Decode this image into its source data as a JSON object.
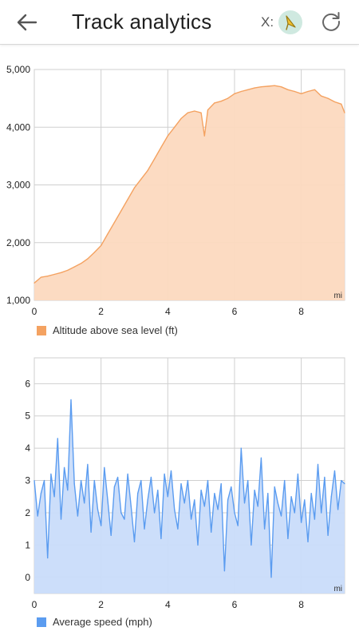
{
  "header": {
    "title": "Track analytics",
    "x_label": "X:",
    "back_icon": "arrow-left-icon",
    "refresh_icon": "refresh-icon",
    "badge_icon": "compass-badge-icon"
  },
  "chart_data": [
    {
      "type": "area",
      "x_unit": "mi",
      "xlim": [
        0,
        9.3
      ],
      "ylim": [
        1000,
        5000
      ],
      "x_ticks": [
        0,
        2,
        4,
        6,
        8
      ],
      "y_ticks": [
        1000,
        2000,
        3000,
        4000,
        5000
      ],
      "y_tick_labels": [
        "1,000",
        "2,000",
        "3,000",
        "4,000",
        "5,000"
      ],
      "color": "#f4a261",
      "fill": "#fcd9bf",
      "series": [
        {
          "name": "Altitude above sea level (ft)",
          "x": [
            0,
            0.2,
            0.4,
            0.6,
            0.8,
            1.0,
            1.2,
            1.4,
            1.6,
            1.8,
            2.0,
            2.2,
            2.4,
            2.6,
            2.8,
            3.0,
            3.2,
            3.4,
            3.6,
            3.8,
            4.0,
            4.2,
            4.4,
            4.6,
            4.8,
            5.0,
            5.1,
            5.2,
            5.4,
            5.6,
            5.8,
            6.0,
            6.2,
            6.4,
            6.6,
            6.8,
            7.0,
            7.2,
            7.4,
            7.6,
            7.8,
            8.0,
            8.2,
            8.4,
            8.6,
            8.8,
            9.0,
            9.2,
            9.3
          ],
          "y": [
            1300,
            1400,
            1420,
            1450,
            1480,
            1520,
            1580,
            1640,
            1720,
            1830,
            1950,
            2150,
            2350,
            2550,
            2750,
            2950,
            3100,
            3250,
            3450,
            3650,
            3850,
            4000,
            4150,
            4250,
            4280,
            4250,
            3850,
            4300,
            4420,
            4450,
            4500,
            4580,
            4620,
            4650,
            4680,
            4700,
            4710,
            4720,
            4700,
            4650,
            4620,
            4580,
            4620,
            4650,
            4540,
            4500,
            4440,
            4400,
            4250
          ]
        }
      ]
    },
    {
      "type": "area",
      "x_unit": "mi",
      "xlim": [
        0,
        9.3
      ],
      "ylim": [
        -0.5,
        6.8
      ],
      "x_ticks": [
        0,
        2,
        4,
        6,
        8
      ],
      "y_ticks": [
        0,
        1,
        2,
        3,
        4,
        5,
        6
      ],
      "y_tick_labels": [
        "0",
        "1",
        "2",
        "3",
        "4",
        "5",
        "6"
      ],
      "color": "#5b9cf0",
      "fill": "#c9dcfa",
      "series": [
        {
          "name": "Average speed (mph)",
          "x": [
            0,
            0.1,
            0.2,
            0.3,
            0.4,
            0.5,
            0.6,
            0.7,
            0.8,
            0.9,
            1.0,
            1.1,
            1.2,
            1.3,
            1.4,
            1.5,
            1.6,
            1.7,
            1.8,
            1.9,
            2.0,
            2.1,
            2.2,
            2.3,
            2.4,
            2.5,
            2.6,
            2.7,
            2.8,
            2.9,
            3.0,
            3.1,
            3.2,
            3.3,
            3.4,
            3.5,
            3.6,
            3.7,
            3.8,
            3.9,
            4.0,
            4.1,
            4.2,
            4.3,
            4.4,
            4.5,
            4.6,
            4.7,
            4.8,
            4.9,
            5.0,
            5.1,
            5.2,
            5.3,
            5.4,
            5.5,
            5.6,
            5.7,
            5.8,
            5.9,
            6.0,
            6.1,
            6.2,
            6.3,
            6.4,
            6.5,
            6.6,
            6.7,
            6.8,
            6.9,
            7.0,
            7.1,
            7.2,
            7.3,
            7.4,
            7.5,
            7.6,
            7.7,
            7.8,
            7.9,
            8.0,
            8.1,
            8.2,
            8.3,
            8.4,
            8.5,
            8.6,
            8.7,
            8.8,
            8.9,
            9.0,
            9.1,
            9.2,
            9.3
          ],
          "y": [
            3.0,
            1.9,
            2.6,
            3.0,
            0.6,
            3.2,
            2.5,
            4.3,
            1.8,
            3.4,
            2.7,
            5.5,
            2.9,
            1.9,
            3.0,
            2.3,
            3.5,
            1.4,
            3.0,
            2.1,
            1.6,
            3.4,
            2.4,
            1.3,
            2.8,
            3.1,
            2.0,
            1.8,
            3.2,
            2.2,
            1.1,
            2.6,
            3.0,
            1.5,
            2.4,
            3.1,
            2.0,
            2.7,
            1.2,
            3.2,
            2.5,
            3.3,
            2.1,
            1.5,
            2.9,
            2.3,
            3.0,
            1.8,
            2.4,
            1.0,
            2.7,
            2.2,
            3.0,
            1.4,
            2.6,
            2.1,
            2.9,
            0.2,
            2.4,
            2.8,
            2.0,
            1.6,
            4.0,
            2.3,
            3.0,
            1.0,
            2.7,
            2.2,
            3.7,
            1.5,
            2.6,
            0.0,
            2.8,
            2.3,
            1.9,
            3.0,
            1.2,
            2.5,
            2.0,
            3.2,
            1.7,
            2.4,
            1.1,
            2.6,
            1.8,
            3.5,
            2.0,
            3.1,
            1.3,
            2.5,
            3.3,
            2.1,
            3.0,
            2.9
          ]
        }
      ]
    }
  ]
}
